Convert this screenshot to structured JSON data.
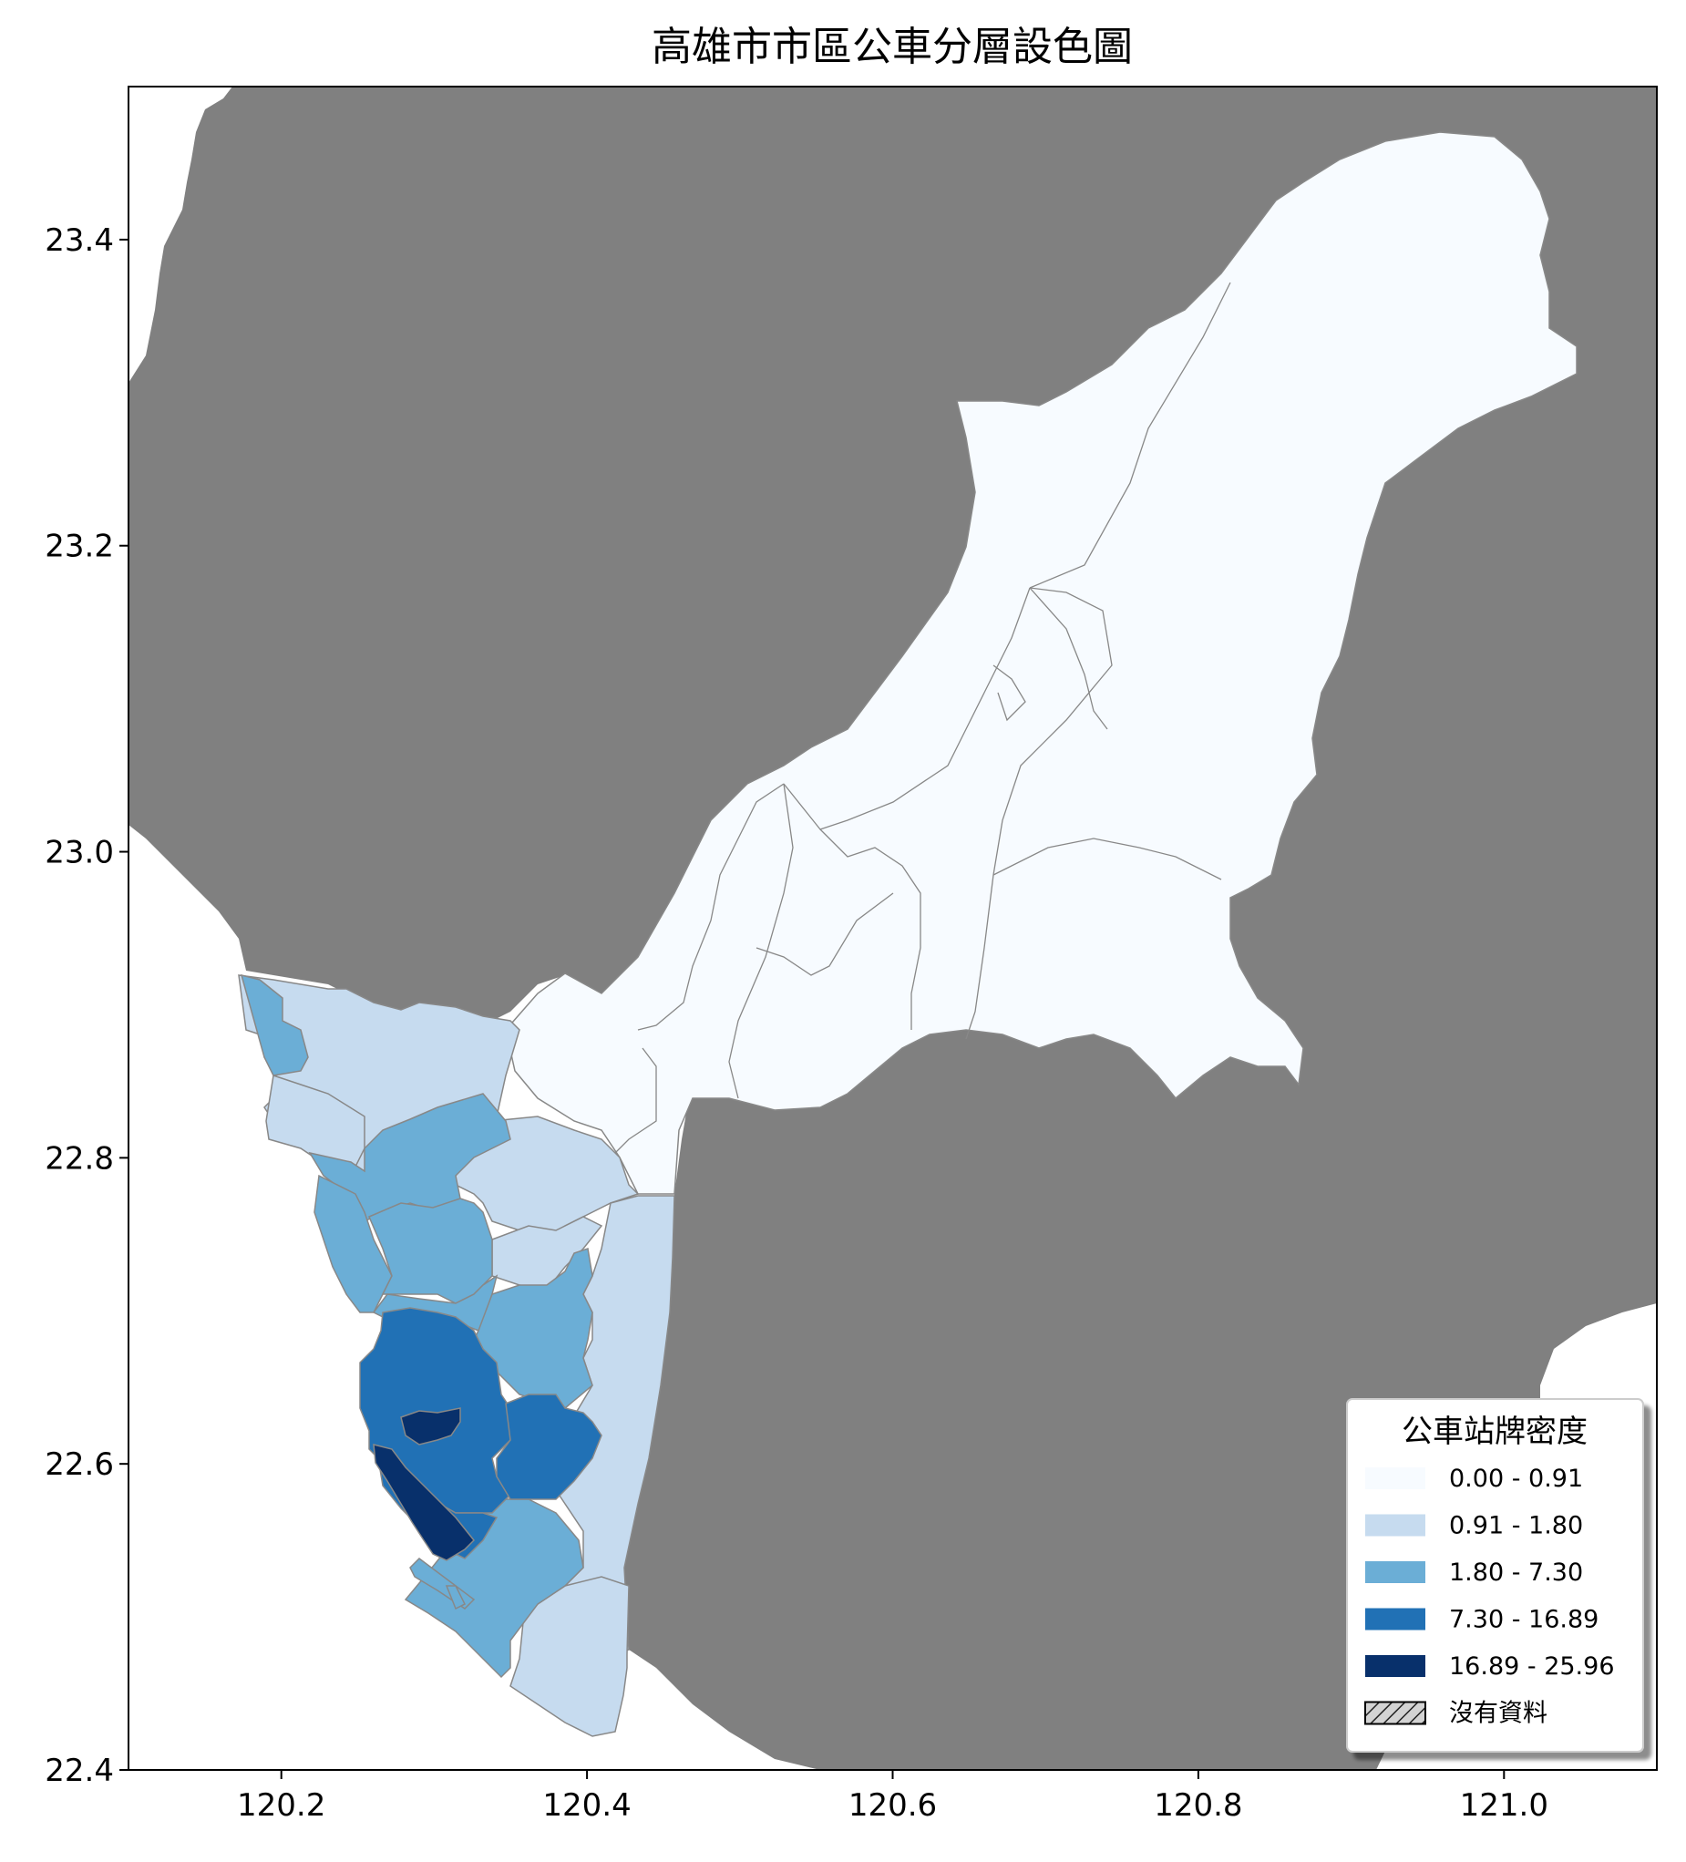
{
  "title": "高雄市市區公車分層設色圖",
  "axes": {
    "x_ticks": [
      "120.2",
      "120.4",
      "120.6",
      "120.8",
      "121.0"
    ],
    "y_ticks": [
      "23.4",
      "23.2",
      "23.0",
      "22.8",
      "22.6",
      "22.4"
    ],
    "xlim": [
      120.1,
      121.1
    ],
    "ylim": [
      22.4,
      23.5
    ]
  },
  "legend": {
    "title": "公車站牌密度",
    "placement": "bottom-right",
    "items": [
      {
        "label": "0.00 - 0.91",
        "color": "#f7fbff"
      },
      {
        "label": "0.91 - 1.80",
        "color": "#c6dbef"
      },
      {
        "label": "1.80 - 7.30",
        "color": "#6baed6"
      },
      {
        "label": "7.30 - 16.89",
        "color": "#2171b5"
      },
      {
        "label": "16.89 - 25.96",
        "color": "#08306b"
      },
      {
        "label": "沒有資料",
        "color": "#d3d3d3",
        "hatch": true
      }
    ]
  },
  "colors": {
    "background_land": "#808080",
    "sea": "#ffffff",
    "boundary": "#777777"
  }
}
